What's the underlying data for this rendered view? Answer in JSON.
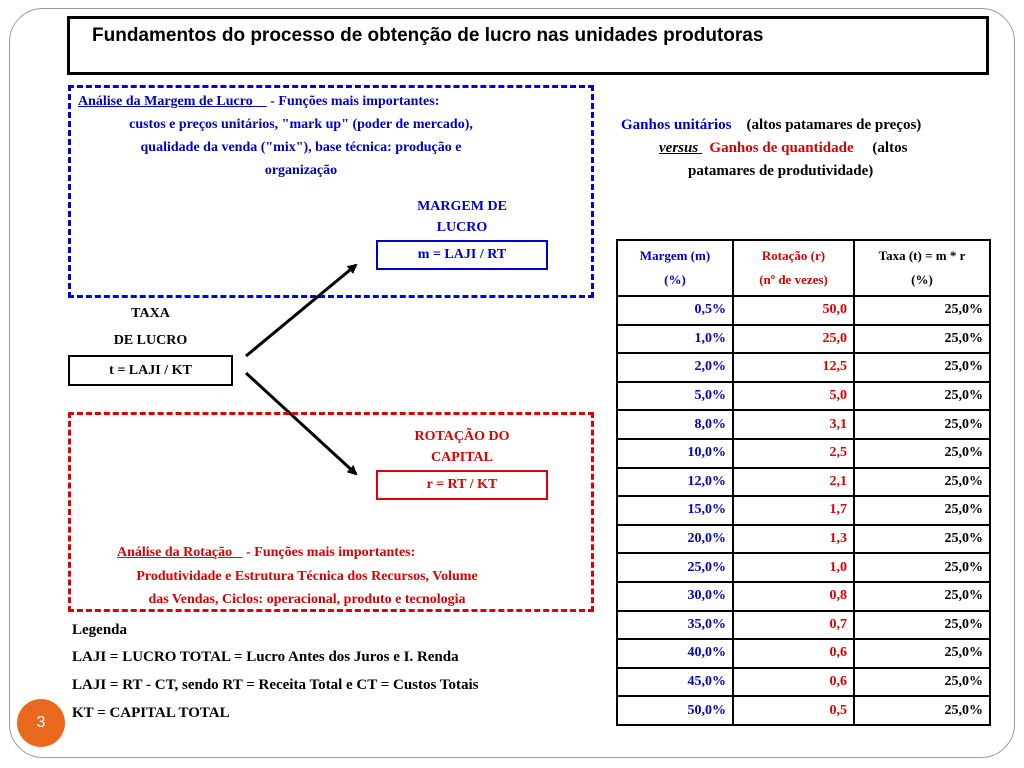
{
  "title": "Fundamentos do processo de obtenção de lucro nas unidades produtoras",
  "margin_analysis": {
    "heading": "Análise da Margem de Lucro",
    "line1_rest": " - Funções mais importantes:",
    "line2": "custos e preços unitários, \"mark up\" (poder de mercado),",
    "line3": "qualidade da venda (\"mix\"), base técnica: produção e",
    "line4": "organização"
  },
  "margem_label_1": "MARGEM DE",
  "margem_label_2": "LUCRO",
  "margem_formula": "m = LAJI / RT",
  "taxa_label_1": "TAXA",
  "taxa_label_2": "DE LUCRO",
  "taxa_formula": "t = LAJI / KT",
  "rotacao_label_1": "ROTAÇÃO DO",
  "rotacao_label_2": "CAPITAL",
  "rotacao_formula": "r = RT / KT",
  "rotation_analysis": {
    "heading": "Análise da Rotação",
    "line1_rest": " - Funções mais importantes:",
    "line2": "Produtividade e Estrutura Técnica dos Recursos, Volume",
    "line3": "das Vendas, Ciclos: operacional, produto e tecnologia"
  },
  "gains": {
    "part1": "Ganhos unitários",
    "part2": "(altos patamares de preços)",
    "versus": "versus",
    "part3": "Ganhos de quantidade",
    "part4": "(altos",
    "part5": "patamares de produtividade)"
  },
  "legend": {
    "title": "Legenda",
    "line1": "LAJI = LUCRO TOTAL = Lucro Antes dos Juros e I. Renda",
    "line2": "LAJI = RT - CT, sendo RT = Receita Total e CT = Custos Totais",
    "line3": "KT = CAPITAL TOTAL"
  },
  "table": {
    "headers": [
      {
        "line1": "Margem (m)",
        "line2": "(%)"
      },
      {
        "line1": "Rotação (r)",
        "line2": "(nº de vezes)"
      },
      {
        "line1": "Taxa (t) = m * r",
        "line2": "(%)"
      }
    ],
    "rows": [
      [
        "0,5%",
        "50,0",
        "25,0%"
      ],
      [
        "1,0%",
        "25,0",
        "25,0%"
      ],
      [
        "2,0%",
        "12,5",
        "25,0%"
      ],
      [
        "5,0%",
        "5,0",
        "25,0%"
      ],
      [
        "8,0%",
        "3,1",
        "25,0%"
      ],
      [
        "10,0%",
        "2,5",
        "25,0%"
      ],
      [
        "12,0%",
        "2,1",
        "25,0%"
      ],
      [
        "15,0%",
        "1,7",
        "25,0%"
      ],
      [
        "20,0%",
        "1,3",
        "25,0%"
      ],
      [
        "25,0%",
        "1,0",
        "25,0%"
      ],
      [
        "30,0%",
        "0,8",
        "25,0%"
      ],
      [
        "35,0%",
        "0,7",
        "25,0%"
      ],
      [
        "40,0%",
        "0,6",
        "25,0%"
      ],
      [
        "45,0%",
        "0,6",
        "25,0%"
      ],
      [
        "50,0%",
        "0,5",
        "25,0%"
      ]
    ]
  },
  "page_number": "3",
  "colors": {
    "blue": "#0000cc",
    "red": "#dd0000",
    "badge": "#e8681d"
  }
}
